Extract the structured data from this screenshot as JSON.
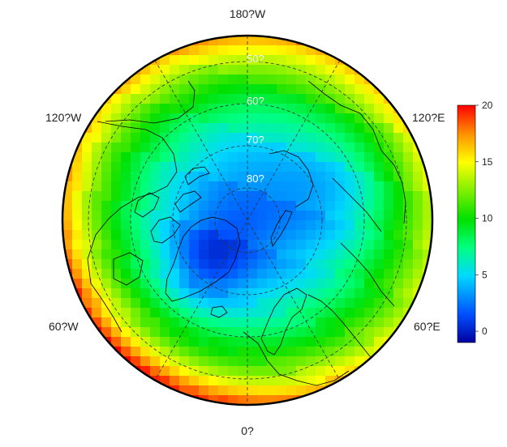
{
  "map": {
    "projection": "north-polar-stereographic",
    "lon_labels": {
      "top": "180?W",
      "bottom": "0?",
      "upper_left": "120?W",
      "upper_right": "120?E",
      "lower_left": "60?W",
      "lower_right": "60?E"
    },
    "lat_labels": [
      "50?",
      "60?",
      "70?",
      "80?"
    ],
    "grid": true
  },
  "colorbar": {
    "ticks": [
      "0",
      "5",
      "10",
      "15",
      "20"
    ],
    "min": -1,
    "max": 20,
    "colors": [
      "#0000a0",
      "#0050ff",
      "#00d8ff",
      "#00ff80",
      "#00e000",
      "#ffff00",
      "#ff9000",
      "#ff0000"
    ]
  },
  "colors": {
    "coastline": "#000000",
    "gridline": "#333333",
    "frame": "#000000"
  }
}
